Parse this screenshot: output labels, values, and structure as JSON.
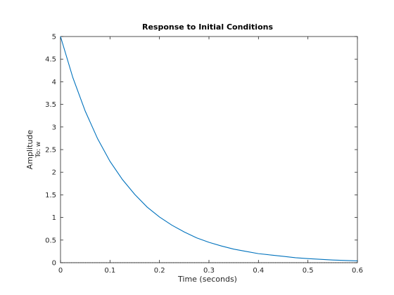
{
  "chart_data": {
    "type": "line",
    "title": "Response to Initial Conditions",
    "xlabel": "Time (seconds)",
    "ylabel": "Amplitude",
    "output_label": "To: w",
    "xlim": [
      0,
      0.6
    ],
    "ylim": [
      0,
      5
    ],
    "xticks": [
      "0",
      "0.1",
      "0.2",
      "0.3",
      "0.4",
      "0.5",
      "0.6"
    ],
    "yticks": [
      "0",
      "0.5",
      "1",
      "1.5",
      "2",
      "2.5",
      "3",
      "3.5",
      "4",
      "4.5",
      "5"
    ],
    "grid": false,
    "zero_reference_line": true,
    "series": [
      {
        "color": "#0072BD",
        "x": [
          0,
          0.025,
          0.05,
          0.075,
          0.1,
          0.125,
          0.15,
          0.175,
          0.2,
          0.225,
          0.25,
          0.275,
          0.3,
          0.325,
          0.35,
          0.375,
          0.4,
          0.425,
          0.45,
          0.475,
          0.5,
          0.525,
          0.55,
          0.575,
          0.6
        ],
        "y": [
          5.0,
          4.09,
          3.35,
          2.74,
          2.24,
          1.84,
          1.51,
          1.23,
          1.01,
          0.83,
          0.68,
          0.55,
          0.45,
          0.37,
          0.3,
          0.25,
          0.2,
          0.17,
          0.14,
          0.11,
          0.09,
          0.075,
          0.06,
          0.05,
          0.04
        ]
      }
    ]
  },
  "colors": {
    "axis": "#262626",
    "line": "#0072BD",
    "zero_line": "#000000",
    "background": "#ffffff"
  }
}
